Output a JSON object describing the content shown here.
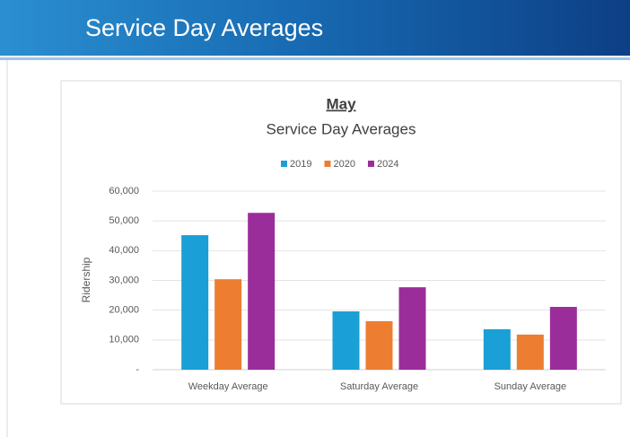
{
  "slide": {
    "title": "Service Day Averages"
  },
  "chart_data": {
    "type": "bar",
    "title": "May",
    "subtitle": "Service Day Averages",
    "y_label": "Ridership",
    "categories": [
      "Weekday Average",
      "Saturday Average",
      "Sunday Average"
    ],
    "series": [
      {
        "name": "2019",
        "color": "#1a9fd6",
        "values": [
          45200,
          19600,
          13600
        ]
      },
      {
        "name": "2020",
        "color": "#ed7d31",
        "values": [
          30400,
          16300,
          11800
        ]
      },
      {
        "name": "2024",
        "color": "#9b2d9b",
        "values": [
          52700,
          27700,
          21100
        ]
      }
    ],
    "ylim": [
      0,
      60000
    ],
    "yticks": [
      {
        "value": 0,
        "label": "-"
      },
      {
        "value": 10000,
        "label": "10,000"
      },
      {
        "value": 20000,
        "label": "20,000"
      },
      {
        "value": 30000,
        "label": "30,000"
      },
      {
        "value": 40000,
        "label": "40,000"
      },
      {
        "value": 50000,
        "label": "50,000"
      },
      {
        "value": 60000,
        "label": "60,000"
      }
    ],
    "grid": true,
    "legend": "top"
  }
}
